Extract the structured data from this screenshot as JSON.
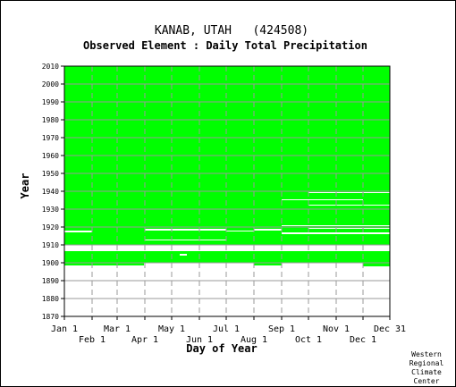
{
  "chart_data": {
    "type": "heatmap",
    "title": "KANAB, UTAH   (424508)",
    "subtitle": "Observed Element : Daily Total Precipitation",
    "xlabel": "Day of Year",
    "ylabel": "Year",
    "ylim": [
      1870,
      2010
    ],
    "xlim": [
      1,
      365
    ],
    "x_ticks_row1": [
      "Jan 1",
      "Mar 1",
      "May 1",
      "Jul 1",
      "Sep 1",
      "Nov 1",
      "Dec 31"
    ],
    "x_ticks_row1_days": [
      1,
      60,
      121,
      182,
      244,
      305,
      365
    ],
    "x_ticks_row2": [
      "Feb 1",
      "Apr 1",
      "Jun 1",
      "Aug 1",
      "Oct 1",
      "Dec 1"
    ],
    "x_ticks_row2_days": [
      32,
      91,
      152,
      213,
      274,
      335
    ],
    "y_ticks": [
      "2010",
      "2000",
      "1990",
      "1980",
      "1970",
      "1960",
      "1950",
      "1940",
      "1930",
      "1920",
      "1910",
      "1900",
      "1890",
      "1880",
      "1870"
    ],
    "y_tick_values": [
      2010,
      2000,
      1990,
      1980,
      1970,
      1960,
      1950,
      1940,
      1930,
      1920,
      1910,
      1900,
      1890,
      1880,
      1870
    ],
    "grid": true,
    "data_color": "#00ff00",
    "gap_color": "#ffffff",
    "coverage": [
      {
        "year_start": 1910.0,
        "year_end": 2010.0,
        "day_start": 1,
        "day_end": 365
      },
      {
        "year_start": 1901.5,
        "year_end": 1906.5,
        "day_start": 1,
        "day_end": 365
      },
      {
        "year_start": 1898.5,
        "year_end": 1901.5,
        "day_start": 1,
        "day_end": 60
      },
      {
        "year_start": 1900.0,
        "year_end": 1901.5,
        "day_start": 60,
        "day_end": 365
      },
      {
        "year_start": 1898.5,
        "year_end": 1900.0,
        "day_start": 60,
        "day_end": 90
      },
      {
        "year_start": 1898.5,
        "year_end": 1900.0,
        "day_start": 213,
        "day_end": 244
      },
      {
        "year_start": 1898.0,
        "year_end": 1900.0,
        "day_start": 335,
        "day_end": 365
      }
    ],
    "gaps": [
      {
        "year_start": 1908.0,
        "year_end": 1910.0,
        "day_start": 1,
        "day_end": 365
      },
      {
        "year_start": 1917.0,
        "year_end": 1918.0,
        "day_start": 1,
        "day_end": 32
      },
      {
        "year_start": 1918.0,
        "year_end": 1919.0,
        "day_start": 91,
        "day_end": 182
      },
      {
        "year_start": 1917.5,
        "year_end": 1918.0,
        "day_start": 182,
        "day_end": 213
      },
      {
        "year_start": 1918.0,
        "year_end": 1919.0,
        "day_start": 213,
        "day_end": 244
      },
      {
        "year_start": 1912.5,
        "year_end": 1913.0,
        "day_start": 91,
        "day_end": 182
      },
      {
        "year_start": 1916.0,
        "year_end": 1917.0,
        "day_start": 244,
        "day_end": 365
      },
      {
        "year_start": 1920.5,
        "year_end": 1921.0,
        "day_start": 244,
        "day_end": 365
      },
      {
        "year_start": 1919.0,
        "year_end": 1919.5,
        "day_start": 274,
        "day_end": 365
      },
      {
        "year_start": 1935.0,
        "year_end": 1935.5,
        "day_start": 244,
        "day_end": 335
      },
      {
        "year_start": 1932.0,
        "year_end": 1932.5,
        "day_start": 274,
        "day_end": 365
      },
      {
        "year_start": 1904.0,
        "year_end": 1905.0,
        "day_start": 130,
        "day_end": 138
      },
      {
        "year_start": 1939.0,
        "year_end": 1939.5,
        "day_start": 274,
        "day_end": 365
      }
    ]
  },
  "footer": {
    "credit_line1": "Western",
    "credit_line2": "Regional",
    "credit_line3": "Climate",
    "credit_line4": "Center"
  }
}
